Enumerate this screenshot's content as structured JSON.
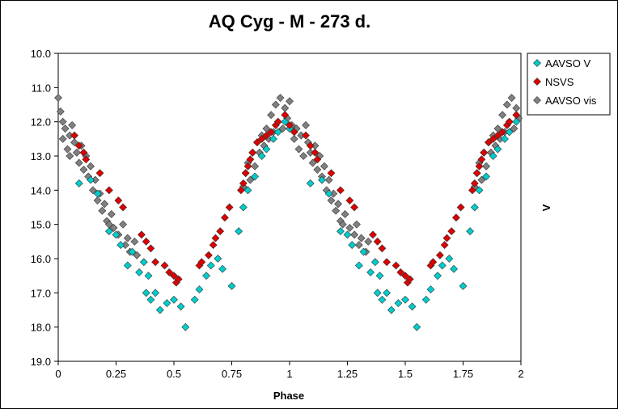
{
  "chart_data": {
    "type": "scatter",
    "title": "AQ Cyg - M - 273 d.",
    "xlabel": "Phase",
    "ylabel": "V",
    "xlim": [
      0,
      2
    ],
    "ylim": [
      10.0,
      19.0
    ],
    "y_inverted": true,
    "x_ticks": [
      "0",
      "0.25",
      "0.5",
      "0.75",
      "1",
      "1.25",
      "1.5",
      "1.75",
      "2"
    ],
    "y_ticks": [
      "10.0",
      "11.0",
      "12.0",
      "13.0",
      "14.0",
      "15.0",
      "16.0",
      "17.0",
      "18.0",
      "19.0"
    ],
    "grid": false,
    "legend_position": "right",
    "series": [
      {
        "name": "AAVSO V",
        "color": "#00CCCC",
        "marker": "diamond",
        "x": [
          0.09,
          0.14,
          0.17,
          0.22,
          0.25,
          0.27,
          0.3,
          0.32,
          0.35,
          0.37,
          0.38,
          0.39,
          0.4,
          0.42,
          0.44,
          0.47,
          0.5,
          0.53,
          0.55,
          0.59,
          0.61,
          0.64,
          0.66,
          0.69,
          0.71,
          0.75,
          0.78,
          0.8,
          0.82,
          0.85,
          0.88,
          0.9,
          0.93,
          0.95,
          0.98,
          1.0,
          1.09,
          1.14,
          1.17,
          1.22,
          1.25,
          1.27,
          1.3,
          1.32,
          1.35,
          1.37,
          1.38,
          1.39,
          1.4,
          1.42,
          1.44,
          1.47,
          1.5,
          1.53,
          1.55,
          1.59,
          1.61,
          1.64,
          1.66,
          1.69,
          1.71,
          1.75,
          1.78,
          1.8,
          1.82,
          1.85,
          1.88,
          1.9,
          1.93,
          1.95,
          1.98
        ],
        "y": [
          13.8,
          13.7,
          14.1,
          15.2,
          15.3,
          15.6,
          16.2,
          15.8,
          16.4,
          16.1,
          17.0,
          16.5,
          17.2,
          17.0,
          17.5,
          17.3,
          17.2,
          17.4,
          18.0,
          17.2,
          16.9,
          16.5,
          16.2,
          16.0,
          16.3,
          16.8,
          15.2,
          14.5,
          14.0,
          13.6,
          13.0,
          12.8,
          12.5,
          12.3,
          12.0,
          12.2,
          13.8,
          13.7,
          14.1,
          15.2,
          15.3,
          15.6,
          16.2,
          15.8,
          16.4,
          16.1,
          17.0,
          16.5,
          17.2,
          17.0,
          17.5,
          17.3,
          17.2,
          17.4,
          18.0,
          17.2,
          16.9,
          16.5,
          16.2,
          16.0,
          16.3,
          16.8,
          15.2,
          14.5,
          14.0,
          13.6,
          13.0,
          12.8,
          12.5,
          12.3,
          12.0
        ]
      },
      {
        "name": "NSVS",
        "color": "#DD0000",
        "marker": "diamond",
        "x": [
          0.07,
          0.09,
          0.11,
          0.12,
          0.18,
          0.22,
          0.26,
          0.28,
          0.36,
          0.38,
          0.4,
          0.42,
          0.46,
          0.48,
          0.5,
          0.51,
          0.52,
          0.61,
          0.62,
          0.65,
          0.67,
          0.68,
          0.7,
          0.72,
          0.74,
          0.79,
          0.8,
          0.81,
          0.82,
          0.83,
          0.84,
          0.86,
          0.88,
          0.9,
          0.92,
          0.94,
          0.95,
          0.98,
          1.0,
          1.02,
          1.07,
          1.09,
          1.11,
          1.12,
          1.18,
          1.22,
          1.26,
          1.28,
          1.36,
          1.38,
          1.4,
          1.42,
          1.46,
          1.48,
          1.5,
          1.51,
          1.52,
          1.61,
          1.62,
          1.65,
          1.67,
          1.68,
          1.7,
          1.72,
          1.74,
          1.79,
          1.8,
          1.81,
          1.82,
          1.83,
          1.84,
          1.86,
          1.88,
          1.9,
          1.92,
          1.94,
          1.95,
          1.98
        ],
        "y": [
          12.4,
          12.7,
          12.9,
          13.1,
          13.5,
          14.0,
          14.3,
          14.5,
          15.3,
          15.5,
          15.7,
          16.1,
          16.2,
          16.4,
          16.5,
          16.7,
          16.6,
          16.2,
          16.1,
          15.9,
          15.6,
          15.4,
          15.2,
          14.8,
          14.5,
          14.0,
          13.8,
          13.5,
          13.3,
          13.1,
          12.9,
          12.6,
          12.5,
          12.4,
          12.3,
          12.1,
          12.0,
          11.8,
          12.1,
          12.3,
          12.4,
          12.7,
          12.9,
          13.1,
          13.5,
          14.0,
          14.3,
          14.5,
          15.3,
          15.5,
          15.7,
          16.1,
          16.2,
          16.4,
          16.5,
          16.7,
          16.6,
          16.2,
          16.1,
          15.9,
          15.6,
          15.4,
          15.2,
          14.8,
          14.5,
          14.0,
          13.8,
          13.5,
          13.3,
          13.1,
          12.9,
          12.6,
          12.5,
          12.4,
          12.3,
          12.1,
          12.0,
          11.8
        ]
      },
      {
        "name": "AAVSO vis",
        "color": "#808080",
        "marker": "diamond",
        "x": [
          0.0,
          0.01,
          0.02,
          0.02,
          0.03,
          0.04,
          0.05,
          0.05,
          0.06,
          0.07,
          0.08,
          0.09,
          0.1,
          0.11,
          0.12,
          0.13,
          0.14,
          0.15,
          0.16,
          0.17,
          0.18,
          0.19,
          0.2,
          0.21,
          0.22,
          0.23,
          0.24,
          0.26,
          0.28,
          0.29,
          0.3,
          0.31,
          0.33,
          0.34,
          0.8,
          0.81,
          0.82,
          0.83,
          0.84,
          0.85,
          0.86,
          0.87,
          0.88,
          0.89,
          0.9,
          0.91,
          0.92,
          0.93,
          0.94,
          0.95,
          0.96,
          0.97,
          0.98,
          0.99,
          1.0,
          1.01,
          1.02,
          1.03,
          1.04,
          1.05,
          1.06,
          1.07,
          1.08,
          1.09,
          1.1,
          1.11,
          1.12,
          1.13,
          1.14,
          1.15,
          1.16,
          1.17,
          1.18,
          1.19,
          1.2,
          1.21,
          1.22,
          1.23,
          1.24,
          1.26,
          1.28,
          1.29,
          1.3,
          1.31,
          1.33,
          1.34,
          1.8,
          1.81,
          1.82,
          1.83,
          1.84,
          1.85,
          1.86,
          1.87,
          1.88,
          1.89,
          1.9,
          1.91,
          1.92,
          1.93,
          1.94,
          1.95,
          1.96,
          1.97,
          1.98,
          1.99
        ],
        "y": [
          11.3,
          11.7,
          12.0,
          12.5,
          12.2,
          12.8,
          12.4,
          13.0,
          12.1,
          12.6,
          12.9,
          13.2,
          12.7,
          13.4,
          13.0,
          13.6,
          13.3,
          14.0,
          13.7,
          14.3,
          14.1,
          14.6,
          14.4,
          14.9,
          15.0,
          14.7,
          15.1,
          15.3,
          15.0,
          15.6,
          15.4,
          15.8,
          15.5,
          15.9,
          13.9,
          13.5,
          13.2,
          13.7,
          12.9,
          13.3,
          12.6,
          12.9,
          12.4,
          12.7,
          12.2,
          12.5,
          11.8,
          12.3,
          11.5,
          12.0,
          11.3,
          12.2,
          11.6,
          11.9,
          11.4,
          12.1,
          12.5,
          12.2,
          12.8,
          12.4,
          13.0,
          12.1,
          12.6,
          12.9,
          13.2,
          12.7,
          13.4,
          13.0,
          13.6,
          13.3,
          14.0,
          13.7,
          14.3,
          14.1,
          14.6,
          14.4,
          14.9,
          15.0,
          14.7,
          15.1,
          15.3,
          15.0,
          15.6,
          15.4,
          15.8,
          15.5,
          13.9,
          13.5,
          13.2,
          13.7,
          12.9,
          13.3,
          12.6,
          12.9,
          12.4,
          12.7,
          12.2,
          12.5,
          11.8,
          12.3,
          11.5,
          12.0,
          11.3,
          12.2,
          11.6,
          11.9
        ]
      }
    ]
  }
}
